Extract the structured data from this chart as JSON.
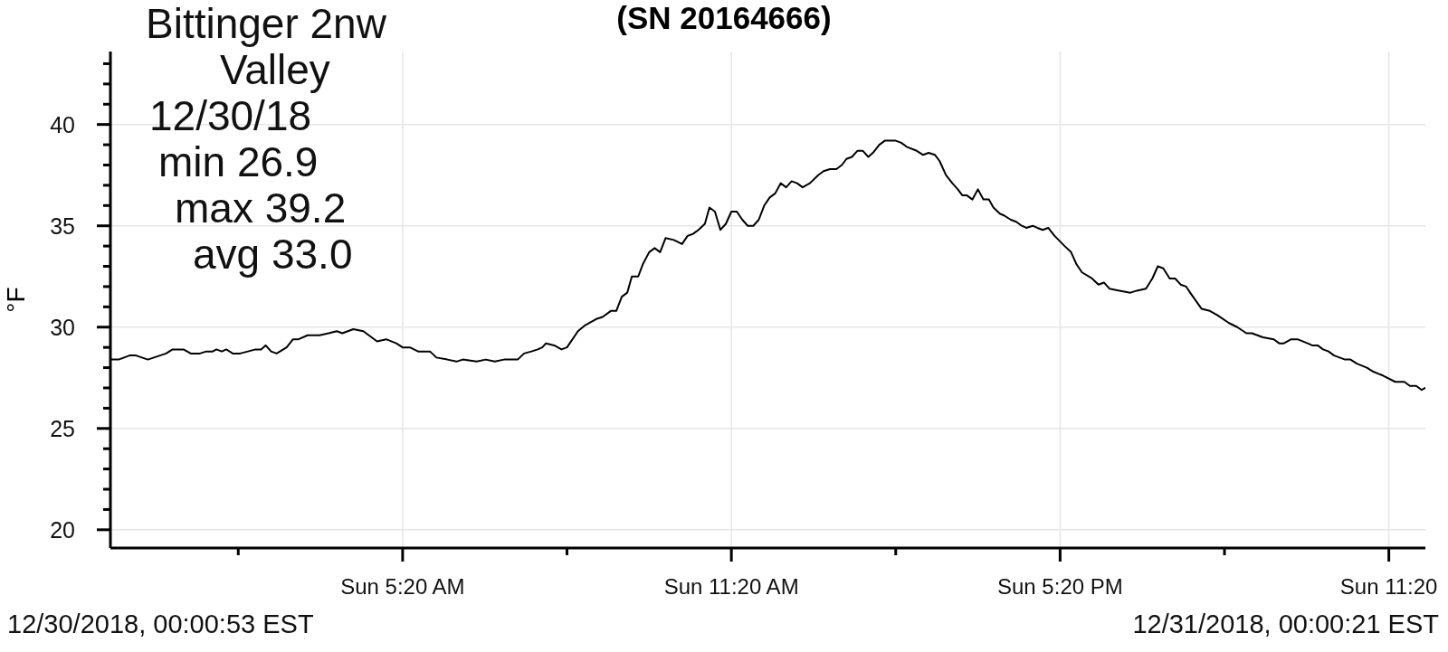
{
  "chart_data": {
    "type": "line",
    "title": "(SN 20164666)",
    "ylabel": "°F",
    "annotations": [
      "Bittinger 2nw",
      "Valley",
      "12/30/18",
      "min 26.9",
      "max 39.2",
      "avg 33.0",
      "12/30/2018, 00:00:53 EST",
      "12/31/2018, 00:00:21 EST"
    ],
    "x": [
      "2018-12-30T00:01",
      "2018-12-30T00:09",
      "2018-12-30T00:21",
      "2018-12-30T00:28",
      "2018-12-30T00:41",
      "2018-12-30T01:01",
      "2018-12-30T01:08",
      "2018-12-30T01:20",
      "2018-12-30T01:28",
      "2018-12-30T01:38",
      "2018-12-30T01:45",
      "2018-12-30T01:52",
      "2018-12-30T01:56",
      "2018-12-30T02:02",
      "2018-12-30T02:07",
      "2018-12-30T02:14",
      "2018-12-30T02:22",
      "2018-12-30T02:39",
      "2018-12-30T02:45",
      "2018-12-30T02:50",
      "2018-12-30T02:56",
      "2018-12-30T03:02",
      "2018-12-30T03:13",
      "2018-12-30T03:20",
      "2018-12-30T03:26",
      "2018-12-30T03:36",
      "2018-12-30T03:49",
      "2018-12-30T03:59",
      "2018-12-30T04:08",
      "2018-12-30T04:14",
      "2018-12-30T04:26",
      "2018-12-30T04:37",
      "2018-12-30T04:43",
      "2018-12-30T04:52",
      "2018-12-30T05:02",
      "2018-12-30T05:13",
      "2018-12-30T05:20",
      "2018-12-30T05:28",
      "2018-12-30T05:37",
      "2018-12-30T05:50",
      "2018-12-30T05:57",
      "2018-12-30T06:09",
      "2018-12-30T06:19",
      "2018-12-30T06:26",
      "2018-12-30T06:41",
      "2018-12-30T06:51",
      "2018-12-30T07:01",
      "2018-12-30T07:11",
      "2018-12-30T07:26",
      "2018-12-30T07:33",
      "2018-12-30T07:41",
      "2018-12-30T07:48",
      "2018-12-30T07:53",
      "2018-12-30T07:57",
      "2018-12-30T08:06",
      "2018-12-30T08:14",
      "2018-12-30T08:20",
      "2018-12-30T08:32",
      "2018-12-30T08:40",
      "2018-12-30T08:52",
      "2018-12-30T08:59",
      "2018-12-30T09:08",
      "2018-12-30T09:14",
      "2018-12-30T09:20",
      "2018-12-30T09:26",
      "2018-12-30T09:31",
      "2018-12-30T09:38",
      "2018-12-30T09:43",
      "2018-12-30T09:50",
      "2018-12-30T09:56",
      "2018-12-30T10:02",
      "2018-12-30T10:08",
      "2018-12-30T10:17",
      "2018-12-30T10:26",
      "2018-12-30T10:32",
      "2018-12-30T10:38",
      "2018-12-30T10:44",
      "2018-12-30T10:51",
      "2018-12-30T10:56",
      "2018-12-30T11:02",
      "2018-12-30T11:08",
      "2018-12-30T11:14",
      "2018-12-30T11:20",
      "2018-12-30T11:26",
      "2018-12-30T11:32",
      "2018-12-30T11:38",
      "2018-12-30T11:44",
      "2018-12-30T11:50",
      "2018-12-30T11:56",
      "2018-12-30T12:02",
      "2018-12-30T12:08",
      "2018-12-30T12:14",
      "2018-12-30T12:20",
      "2018-12-30T12:26",
      "2018-12-30T12:32",
      "2018-12-30T12:38",
      "2018-12-30T12:46",
      "2018-12-30T12:55",
      "2018-12-30T13:01",
      "2018-12-30T13:08",
      "2018-12-30T13:15",
      "2018-12-30T13:21",
      "2018-12-30T13:26",
      "2018-12-30T13:32",
      "2018-12-30T13:38",
      "2018-12-30T13:44",
      "2018-12-30T13:50",
      "2018-12-30T13:55",
      "2018-12-30T14:02",
      "2018-12-30T14:08",
      "2018-12-30T14:15",
      "2018-12-30T14:20",
      "2018-12-30T14:26",
      "2018-12-30T14:32",
      "2018-12-30T14:43",
      "2018-12-30T14:50",
      "2018-12-30T14:56",
      "2018-12-30T15:03",
      "2018-12-30T15:08",
      "2018-12-30T15:15",
      "2018-12-30T15:22",
      "2018-12-30T15:28",
      "2018-12-30T15:33",
      "2018-12-30T15:38",
      "2018-12-30T15:44",
      "2018-12-30T15:50",
      "2018-12-30T15:56",
      "2018-12-30T16:02",
      "2018-12-30T16:07",
      "2018-12-30T16:14",
      "2018-12-30T16:19",
      "2018-12-30T16:26",
      "2018-12-30T16:32",
      "2018-12-30T16:38",
      "2018-12-30T16:43",
      "2018-12-30T16:50",
      "2018-12-30T16:55",
      "2018-12-30T17:01",
      "2018-12-30T17:07",
      "2018-12-30T17:14",
      "2018-12-30T17:25",
      "2018-12-30T17:32",
      "2018-12-30T17:38",
      "2018-12-30T17:44",
      "2018-12-30T17:55",
      "2018-12-30T18:02",
      "2018-12-30T18:08",
      "2018-12-30T18:14",
      "2018-12-30T18:25",
      "2018-12-30T18:37",
      "2018-12-30T18:44",
      "2018-12-30T18:54",
      "2018-12-30T19:01",
      "2018-12-30T19:07",
      "2018-12-30T19:13",
      "2018-12-30T19:20",
      "2018-12-30T19:26",
      "2018-12-30T19:32",
      "2018-12-30T19:38",
      "2018-12-30T19:44",
      "2018-12-30T19:55",
      "2018-12-30T20:04",
      "2018-12-30T20:12",
      "2018-12-30T20:25",
      "2018-12-30T20:34",
      "2018-12-30T20:44",
      "2018-12-30T20:50",
      "2018-12-30T21:02",
      "2018-12-30T21:14",
      "2018-12-30T21:20",
      "2018-12-30T21:25",
      "2018-12-30T21:33",
      "2018-12-30T21:40",
      "2018-12-30T21:51",
      "2018-12-30T21:56",
      "2018-12-30T22:02",
      "2018-12-30T22:08",
      "2018-12-30T22:14",
      "2018-12-30T22:20",
      "2018-12-30T22:32",
      "2018-12-30T22:38",
      "2018-12-30T22:45",
      "2018-12-30T22:56",
      "2018-12-30T23:03",
      "2018-12-30T23:14",
      "2018-12-30T23:27",
      "2018-12-30T23:37",
      "2018-12-30T23:43",
      "2018-12-30T23:50",
      "2018-12-30T23:56",
      "2018-12-31T00:00"
    ],
    "values": [
      28.4,
      28.4,
      28.6,
      28.6,
      28.4,
      28.7,
      28.9,
      28.9,
      28.7,
      28.7,
      28.8,
      28.8,
      28.9,
      28.8,
      28.9,
      28.7,
      28.7,
      28.9,
      28.9,
      29.1,
      28.8,
      28.7,
      29.0,
      29.4,
      29.4,
      29.6,
      29.6,
      29.7,
      29.8,
      29.7,
      29.9,
      29.8,
      29.6,
      29.3,
      29.4,
      29.2,
      29.0,
      29.0,
      28.8,
      28.8,
      28.5,
      28.4,
      28.3,
      28.4,
      28.3,
      28.4,
      28.3,
      28.4,
      28.4,
      28.7,
      28.8,
      28.9,
      29.0,
      29.2,
      29.1,
      28.9,
      29.0,
      29.8,
      30.1,
      30.4,
      30.5,
      30.8,
      30.8,
      31.5,
      31.7,
      32.5,
      32.5,
      33.1,
      33.7,
      33.9,
      33.7,
      34.4,
      34.3,
      34.1,
      34.5,
      34.6,
      34.8,
      35.1,
      35.9,
      35.7,
      34.8,
      35.1,
      35.7,
      35.7,
      35.3,
      35.0,
      35.0,
      35.3,
      36.0,
      36.4,
      36.6,
      37.1,
      36.9,
      37.2,
      37.1,
      36.9,
      37.1,
      37.5,
      37.7,
      37.8,
      37.8,
      38.0,
      38.3,
      38.4,
      38.7,
      38.7,
      38.4,
      38.6,
      39.0,
      39.2,
      39.2,
      39.2,
      39.1,
      38.9,
      38.7,
      38.5,
      38.6,
      38.5,
      38.2,
      37.5,
      37.1,
      36.8,
      36.5,
      36.5,
      36.3,
      36.8,
      36.3,
      36.3,
      35.9,
      35.6,
      35.5,
      35.3,
      35.2,
      35.0,
      34.9,
      35.0,
      34.9,
      34.8,
      34.9,
      34.5,
      34.0,
      33.7,
      33.1,
      32.7,
      32.4,
      32.1,
      32.2,
      31.9,
      31.8,
      31.7,
      31.8,
      31.9,
      32.4,
      33.0,
      32.9,
      32.4,
      32.4,
      32.1,
      32.0,
      31.6,
      30.9,
      30.8,
      30.6,
      30.2,
      30.0,
      29.7,
      29.7,
      29.5,
      29.4,
      29.2,
      29.2,
      29.4,
      29.4,
      29.2,
      29.1,
      29.1,
      28.9,
      28.8,
      28.6,
      28.4,
      28.4,
      28.2,
      28.0,
      27.8,
      27.6,
      27.3,
      27.3,
      27.1,
      27.1,
      26.9,
      27.0
    ],
    "color": "#000000",
    "xlim": [
      "2018-12-30T00:00",
      "2018-12-31T00:00"
    ],
    "ylim": [
      19.1,
      43.6
    ],
    "xticks": [
      {
        "value": "2018-12-30T02:20",
        "label": null
      },
      {
        "value": "2018-12-30T05:20",
        "label": "Sun 5:20 AM"
      },
      {
        "value": "2018-12-30T08:20",
        "label": null
      },
      {
        "value": "2018-12-30T11:20",
        "label": "Sun 11:20 AM"
      },
      {
        "value": "2018-12-30T14:20",
        "label": null
      },
      {
        "value": "2018-12-30T17:20",
        "label": "Sun 5:20 PM"
      },
      {
        "value": "2018-12-30T20:20",
        "label": null
      },
      {
        "value": "2018-12-30T23:20",
        "label": "Sun 11:20"
      }
    ],
    "yticks": [
      20,
      {
        "value": 21,
        "label": null
      },
      {
        "value": 22,
        "label": null
      },
      {
        "value": 23,
        "label": null
      },
      {
        "value": 24,
        "label": null
      },
      25,
      {
        "value": 26,
        "label": null
      },
      {
        "value": 27,
        "label": null
      },
      {
        "value": 28,
        "label": null
      },
      {
        "value": 29,
        "label": null
      },
      30,
      {
        "value": 31,
        "label": null
      },
      {
        "value": 32,
        "label": null
      },
      {
        "value": 33,
        "label": null
      },
      {
        "value": 34,
        "label": null
      },
      35,
      {
        "value": 36,
        "label": null
      },
      {
        "value": 37,
        "label": null
      },
      {
        "value": 38,
        "label": null
      },
      {
        "value": 39,
        "label": null
      },
      40,
      {
        "value": 41,
        "label": null
      },
      {
        "value": 42,
        "label": null
      },
      {
        "value": 43,
        "label": null
      }
    ],
    "grid": true
  }
}
